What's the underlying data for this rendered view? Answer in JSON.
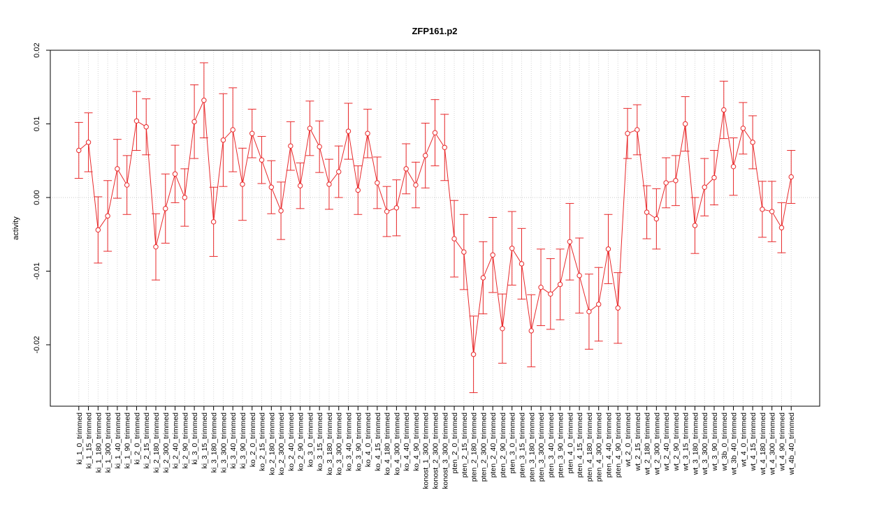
{
  "chart_data": {
    "type": "line",
    "title": "ZFP161.p2",
    "y_label": "activity",
    "categories": [
      "ki_1_0_trimmed",
      "ki_1_15_trimmed",
      "ki_1_180_trimmed",
      "ki_1_300_trimmed",
      "ki_1_40_trimmed",
      "ki_1_90_trimmed",
      "ki_2_0_trimmed",
      "ki_2_15_trimmed",
      "ki_2_180_trimmed",
      "ki_2_300_trimmed",
      "ki_2_40_trimmed",
      "ki_2_90_trimmed",
      "ki_3_0_trimmed",
      "ki_3_15_trimmed",
      "ki_3_180_trimmed",
      "ki_3_300_trimmed",
      "ki_3_40_trimmed",
      "ki_3_90_trimmed",
      "ko_2_0_trimmed",
      "ko_2_15_trimmed",
      "ko_2_180_trimmed",
      "ko_2_300_trimmed",
      "ko_2_40_trimmed",
      "ko_2_90_trimmed",
      "ko_3_0_trimmed",
      "ko_3_15_trimmed",
      "ko_3_180_trimmed",
      "ko_3_300_trimmed",
      "ko_3_40_trimmed",
      "ko_3_90_trimmed",
      "ko_4_0_trimmed",
      "ko_4_15_trimmed",
      "ko_4_180_trimmed",
      "ko_4_300_trimmed",
      "ko_4_40_trimmed",
      "ko_4_90_trimmed",
      "konost_1_300_trimmed",
      "konost_2_300_trimmed",
      "konost_3_300_trimmed",
      "pten_2_0_trimmed",
      "pten_2_15_trimmed",
      "pten_2_180_trimmed",
      "pten_2_300_trimmed",
      "pten_2_40_trimmed",
      "pten_2_90_trimmed",
      "pten_3_0_trimmed",
      "pten_3_15_trimmed",
      "pten_3_180_trimmed",
      "pten_3_300_trimmed",
      "pten_3_40_trimmed",
      "pten_3_90_trimmed",
      "pten_4_0_trimmed",
      "pten_4_15_trimmed",
      "pten_4_180_trimmed",
      "pten_4_300_trimmed",
      "pten_4_40_trimmed",
      "pten_4_90_trimmed",
      "wt_2_0_trimmed",
      "wt_2_15_trimmed",
      "wt_2_180_trimmed",
      "wt_2_300_trimmed",
      "wt_2_40_trimmed",
      "wt_2_90_trimmed",
      "wt_3_15_trimmed",
      "wt_3_180_trimmed",
      "wt_3_300_trimmed",
      "wt_3_90_trimmed",
      "wt_3b_0_trimmed",
      "wt_3b_40_trimmed",
      "wt_4_0_trimmed",
      "wt_4_15_trimmed",
      "wt_4_180_trimmed",
      "wt_4_300_trimmed",
      "wt_4_90_trimmed",
      "wt_4b_40_trimmed"
    ],
    "series": [
      {
        "color": "#e8282a",
        "values": [
          0.0064,
          0.0075,
          -0.0044,
          -0.0025,
          0.0039,
          0.0017,
          0.0104,
          0.0096,
          -0.0067,
          -0.0015,
          0.0032,
          0.0,
          0.0103,
          0.0132,
          -0.0033,
          0.0078,
          0.0092,
          0.0018,
          0.0087,
          0.0051,
          0.0014,
          -0.0018,
          0.007,
          0.0016,
          0.0094,
          0.0069,
          0.0018,
          0.0035,
          0.009,
          0.001,
          0.0087,
          0.002,
          -0.0019,
          -0.0014,
          0.0039,
          0.0017,
          0.0057,
          0.0088,
          0.0068,
          -0.0056,
          -0.0074,
          -0.0213,
          -0.0109,
          -0.0078,
          -0.0178,
          -0.0069,
          -0.009,
          -0.0181,
          -0.0122,
          -0.0131,
          -0.0118,
          -0.006,
          -0.0106,
          -0.0155,
          -0.0145,
          -0.007,
          -0.015,
          0.0087,
          0.0092,
          -0.002,
          -0.0029,
          0.002,
          0.0023,
          0.01,
          -0.0038,
          0.0014,
          0.0027,
          0.0119,
          0.0042,
          0.0094,
          0.0075,
          -0.0016,
          -0.0019,
          -0.0041,
          0.0028
        ],
        "errors": [
          0.0038,
          0.004,
          0.0045,
          0.0048,
          0.004,
          0.004,
          0.004,
          0.0038,
          0.0045,
          0.0047,
          0.0039,
          0.0039,
          0.005,
          0.0051,
          0.0047,
          0.0063,
          0.0057,
          0.0049,
          0.0033,
          0.0032,
          0.0036,
          0.0039,
          0.0033,
          0.0031,
          0.0037,
          0.0035,
          0.0034,
          0.0035,
          0.0038,
          0.0033,
          0.0033,
          0.0035,
          0.0034,
          0.0038,
          0.0034,
          0.0031,
          0.0044,
          0.0045,
          0.0045,
          0.0052,
          0.0051,
          0.0052,
          0.0049,
          0.0051,
          0.0047,
          0.005,
          0.0048,
          0.0049,
          0.0052,
          0.0048,
          0.0048,
          0.0052,
          0.0051,
          0.0051,
          0.005,
          0.0047,
          0.0048,
          0.0034,
          0.0034,
          0.0036,
          0.0041,
          0.0034,
          0.0034,
          0.0037,
          0.0038,
          0.0039,
          0.0037,
          0.0039,
          0.0039,
          0.0035,
          0.0036,
          0.0038,
          0.0041,
          0.0034,
          0.0036
        ]
      }
    ],
    "ylim": [
      -0.02834,
      0.02
    ],
    "yticks": [
      -0.02,
      -0.01,
      {
        "value": 0,
        "label": "0.00"
      },
      0.01,
      0.02
    ],
    "reference_line": 0,
    "grid": true
  }
}
